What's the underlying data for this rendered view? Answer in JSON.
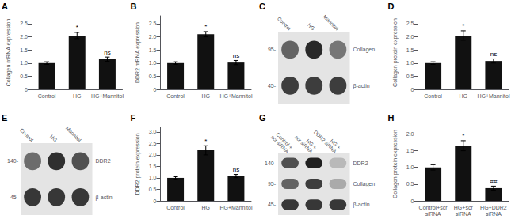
{
  "chart_data": [
    {
      "type": "bar",
      "title": "A",
      "ylabel": "Collagen mRNA expression",
      "categories": [
        "Control",
        "HG",
        "HG+Mannitol"
      ],
      "values": [
        1.0,
        2.05,
        1.15
      ],
      "errors": [
        0.05,
        0.12,
        0.08
      ],
      "annotations": [
        null,
        "*",
        "ns"
      ],
      "color": "#111111",
      "ylim": [
        0,
        2.8
      ],
      "yticks": [
        0,
        0.5,
        {
          "value": 1.0,
          "label": "1.0"
        },
        1.5,
        {
          "value": 2.0,
          "label": "2.0"
        },
        2.5
      ],
      "grid": false
    },
    {
      "type": "bar",
      "title": "B",
      "ylabel": "DDR2 mRNA expression",
      "categories": [
        "Control",
        "HG",
        "HG+Mannitol"
      ],
      "values": [
        1.0,
        2.1,
        1.02
      ],
      "errors": [
        0.05,
        0.1,
        0.08
      ],
      "annotations": [
        null,
        "*",
        "ns"
      ],
      "color": "#111111",
      "ylim": [
        0,
        2.8
      ],
      "yticks": [
        0,
        0.5,
        {
          "value": 1.0,
          "label": "1.0"
        },
        1.5,
        {
          "value": 2.0,
          "label": "2.0"
        },
        2.5
      ],
      "grid": false
    },
    {
      "type": "blot",
      "title": "C",
      "categories": [
        "Control",
        "HG",
        "Mannitol"
      ],
      "rows": [
        "Collagen",
        "β-actin"
      ],
      "row_labels_left": [
        "95-",
        "45-"
      ],
      "cells": [
        [
          0.55,
          0.85,
          0.45
        ],
        [
          0.75,
          0.75,
          0.75
        ]
      ]
    },
    {
      "type": "bar",
      "title": "D",
      "ylabel": "Collagen protein expression",
      "categories": [
        "Control",
        "HG",
        "HG+Mannitol"
      ],
      "values": [
        1.0,
        2.05,
        1.08
      ],
      "errors": [
        0.05,
        0.18,
        0.08
      ],
      "annotations": [
        null,
        "*",
        "ns"
      ],
      "color": "#111111",
      "ylim": [
        0,
        2.8
      ],
      "yticks": [
        0,
        0.5,
        {
          "value": 1.0,
          "label": "1.0"
        },
        1.5,
        {
          "value": 2.0,
          "label": "2.0"
        },
        2.5
      ],
      "grid": false
    },
    {
      "type": "blot",
      "title": "E",
      "categories": [
        "Control",
        "HG",
        "Mannitol"
      ],
      "rows": [
        "DDR2",
        "β-actin"
      ],
      "row_labels_left": [
        "140-",
        "45-"
      ],
      "cells": [
        [
          0.5,
          0.82,
          0.65
        ],
        [
          0.78,
          0.78,
          0.78
        ]
      ]
    },
    {
      "type": "bar",
      "title": "F",
      "ylabel": "DDR2 protein expression",
      "categories": [
        "Control",
        "HG",
        "HG+Mannitol"
      ],
      "values": [
        1.0,
        2.2,
        1.08
      ],
      "errors": [
        0.05,
        0.2,
        0.07
      ],
      "annotations": [
        null,
        "*",
        "ns"
      ],
      "color": "#111111",
      "ylim": [
        0,
        3.2
      ],
      "yticks": [
        0,
        0.5,
        {
          "value": 1.0,
          "label": "1.0"
        },
        1.5,
        {
          "value": 2.0,
          "label": "2.0"
        },
        2.5,
        {
          "value": 3.0,
          "label": "3.0"
        }
      ],
      "grid": false
    },
    {
      "type": "blot",
      "title": "G",
      "categories": [
        "Control +\nscr siRNA",
        "HG +\nscr siRNA",
        "HG +\nDDR2 siRNA"
      ],
      "rows": [
        "DDR2",
        "Collagen",
        "β-actin"
      ],
      "row_labels_left": [
        "140-",
        "95-",
        "45-"
      ],
      "cells": [
        [
          0.65,
          0.9,
          0.1
        ],
        [
          0.55,
          0.75,
          0.18
        ],
        [
          0.78,
          0.78,
          0.78
        ]
      ]
    },
    {
      "type": "bar",
      "title": "H",
      "ylabel": "Collagen protein expression",
      "categories": [
        "Control+scr\nsiRNA",
        "HG+scr\nsiRNA",
        "HG+DDR2\nsiRNA"
      ],
      "values": [
        1.0,
        1.65,
        0.38
      ],
      "errors": [
        0.08,
        0.15,
        0.06
      ],
      "annotations": [
        null,
        "*",
        "##"
      ],
      "color": "#111111",
      "ylim": [
        0,
        2.2
      ],
      "yticks": [
        0,
        0.5,
        {
          "value": 1.0,
          "label": "1.0"
        },
        1.5,
        {
          "value": 2.0,
          "label": "2.0"
        }
      ],
      "grid": false
    }
  ]
}
